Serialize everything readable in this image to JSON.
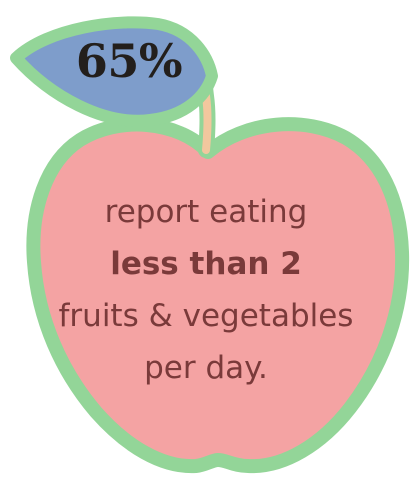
{
  "stat": {
    "value": "65%"
  },
  "caption": {
    "line1": "report eating",
    "line2": "less than 2",
    "line3": "fruits & vegetables",
    "line4": "per day."
  },
  "colors": {
    "apple_fill": "#f4a3a3",
    "apple_outline": "#93d598",
    "leaf_fill": "#7e9dcb",
    "leaf_outline": "#93d598",
    "stem": "#f2c79e",
    "caption_text": "#7a3a3a",
    "stat_text": "#231f1c"
  },
  "icons": {
    "apple": "apple-icon",
    "leaf": "leaf-icon",
    "stem": "stem-icon"
  }
}
